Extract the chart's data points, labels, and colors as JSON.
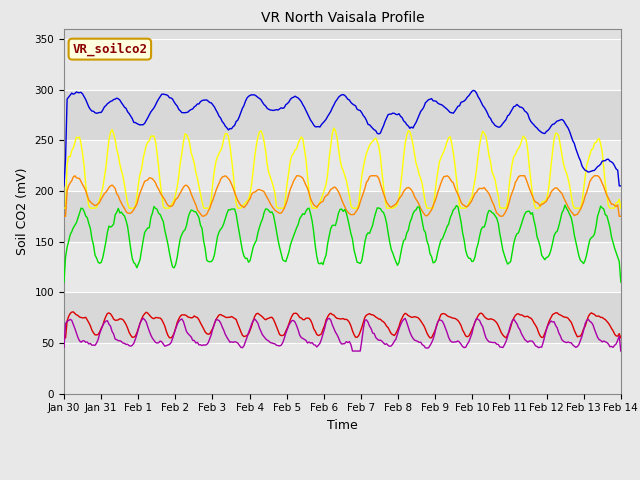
{
  "title": "VR North Vaisala Profile",
  "xlabel": "Time",
  "ylabel": "Soil CO2 (mV)",
  "annotation": "VR_soilco2",
  "xlim_days": [
    0,
    15
  ],
  "ylim": [
    0,
    360
  ],
  "yticks": [
    0,
    50,
    100,
    150,
    200,
    250,
    300,
    350
  ],
  "fig_bg_color": "#e8e8e8",
  "plot_bg_color": "#e0e0e0",
  "series": {
    "CO2N_1": {
      "color": "#dd0000",
      "linewidth": 1.0
    },
    "CO2N_2": {
      "color": "#ff8800",
      "linewidth": 1.0
    },
    "CO2N_3": {
      "color": "#ffff00",
      "linewidth": 1.0
    },
    "CO2N_4": {
      "color": "#0000dd",
      "linewidth": 1.0
    },
    "North -4cm": {
      "color": "#00dd00",
      "linewidth": 1.0
    },
    "East -4cm": {
      "color": "#aa00aa",
      "linewidth": 1.0
    }
  },
  "xtick_labels": [
    "Jan 30",
    "Jan 31",
    "Feb 1",
    "Feb 2",
    "Feb 3",
    "Feb 4",
    "Feb 5",
    "Feb 6",
    "Feb 7",
    "Feb 8",
    "Feb 9",
    "Feb 10",
    "Feb 11",
    "Feb 12",
    "Feb 13",
    "Feb 14"
  ],
  "xtick_positions": [
    0,
    1,
    2,
    3,
    4,
    5,
    6,
    7,
    8,
    9,
    10,
    11,
    12,
    13,
    14,
    15
  ],
  "title_fontsize": 10,
  "axis_label_fontsize": 9,
  "tick_fontsize": 7.5,
  "legend_fontsize": 8
}
